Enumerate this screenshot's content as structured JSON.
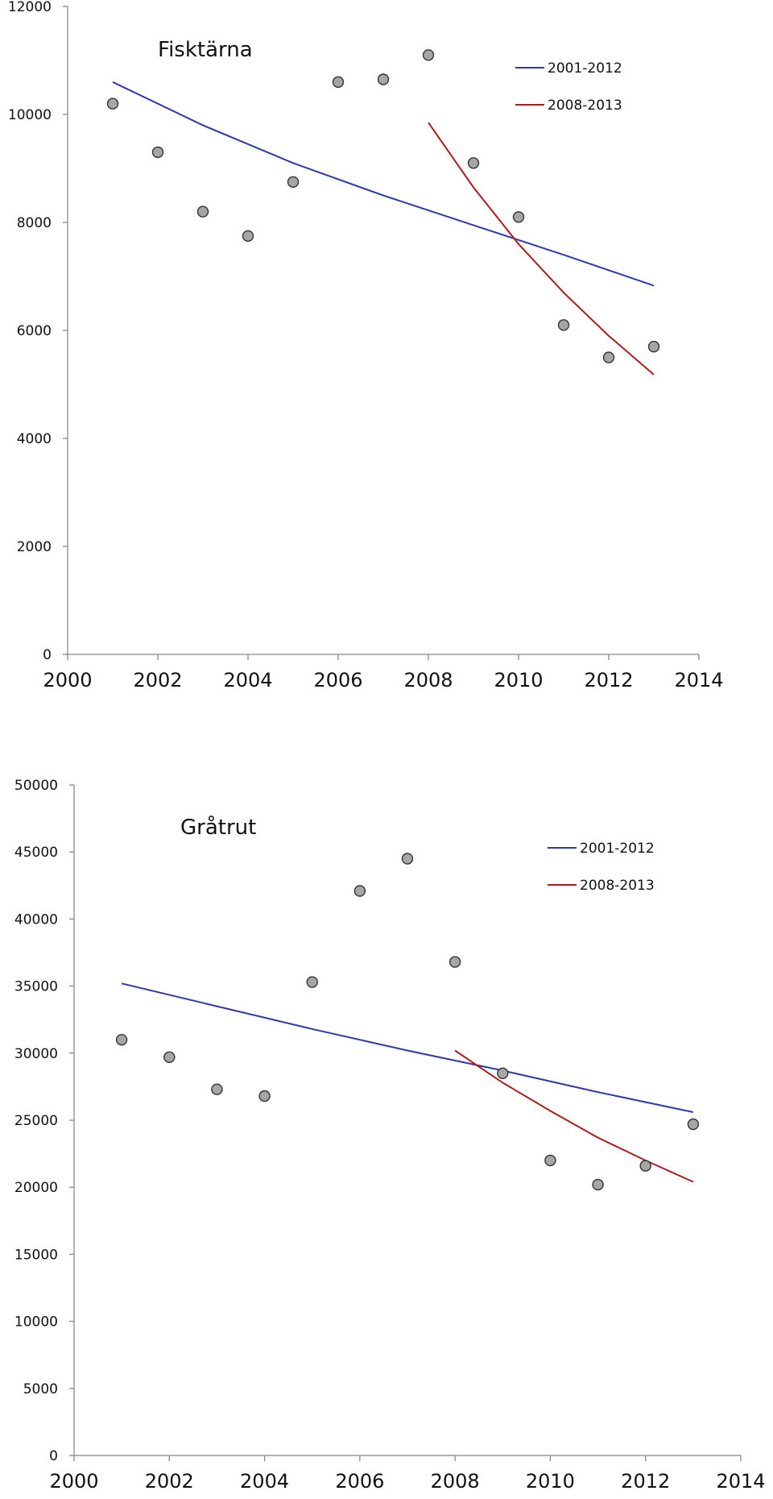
{
  "chart_data": [
    {
      "type": "scatter",
      "title": "Fisktärna",
      "xlabel": "",
      "ylabel": "",
      "xlim": [
        2000,
        2014
      ],
      "ylim": [
        0,
        12000
      ],
      "xticks": [
        2000,
        2002,
        2004,
        2006,
        2008,
        2010,
        2012,
        2014
      ],
      "yticks": [
        0,
        2000,
        4000,
        6000,
        8000,
        10000,
        12000
      ],
      "grid": false,
      "legend_position": "top-right",
      "points": {
        "x": [
          2001,
          2002,
          2003,
          2004,
          2005,
          2006,
          2007,
          2008,
          2009,
          2010,
          2011,
          2012,
          2013
        ],
        "y": [
          10200,
          9300,
          8200,
          7750,
          8750,
          10600,
          10650,
          11100,
          9100,
          8100,
          6100,
          5500,
          5700
        ],
        "color": "#a6a6a6"
      },
      "series": [
        {
          "name": "2001-2012",
          "color": "#2e3aa8",
          "x": [
            2001,
            2003,
            2005,
            2007,
            2009,
            2011,
            2013
          ],
          "y": [
            10600,
            9800,
            9100,
            8500,
            7950,
            7400,
            6830
          ]
        },
        {
          "name": "2008-2013",
          "color": "#a81e1e",
          "x": [
            2008,
            2009,
            2010,
            2011,
            2012,
            2013
          ],
          "y": [
            9850,
            8650,
            7600,
            6700,
            5900,
            5180
          ]
        }
      ]
    },
    {
      "type": "scatter",
      "title": "Gråtrut",
      "xlabel": "",
      "ylabel": "",
      "xlim": [
        2000,
        2014
      ],
      "ylim": [
        0,
        50000
      ],
      "xticks": [
        2000,
        2002,
        2004,
        2006,
        2008,
        2010,
        2012,
        2014
      ],
      "yticks": [
        0,
        5000,
        10000,
        15000,
        20000,
        25000,
        30000,
        35000,
        40000,
        45000,
        50000
      ],
      "grid": false,
      "legend_position": "top-right",
      "points": {
        "x": [
          2001,
          2002,
          2003,
          2004,
          2005,
          2006,
          2007,
          2008,
          2009,
          2010,
          2011,
          2012,
          2013
        ],
        "y": [
          31000,
          29700,
          27300,
          26800,
          35300,
          42100,
          44500,
          36800,
          28500,
          22000,
          20200,
          21600,
          24700
        ],
        "color": "#a6a6a6"
      },
      "series": [
        {
          "name": "2001-2012",
          "color": "#2e3aa8",
          "x": [
            2001,
            2003,
            2005,
            2007,
            2009,
            2011,
            2013
          ],
          "y": [
            35200,
            33500,
            31800,
            30200,
            28700,
            27100,
            25600
          ]
        },
        {
          "name": "2008-2013",
          "color": "#a81e1e",
          "x": [
            2008,
            2009,
            2010,
            2011,
            2012,
            2013
          ],
          "y": [
            30200,
            27800,
            25700,
            23700,
            22000,
            20400
          ]
        }
      ]
    }
  ]
}
